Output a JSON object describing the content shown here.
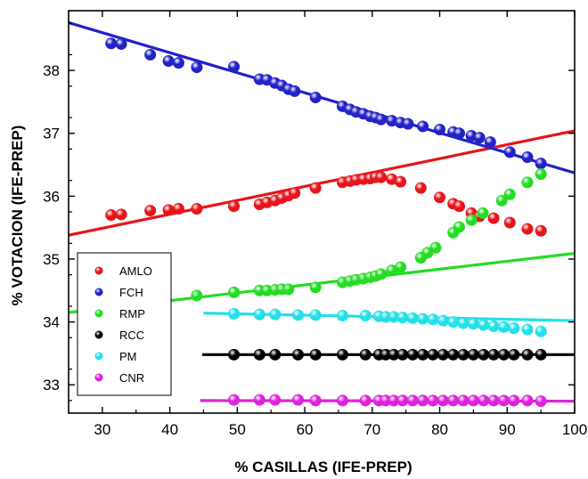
{
  "chart_data": {
    "type": "scatter",
    "title": "",
    "xlabel": "% CASILLAS (IFE-PREP)",
    "ylabel": "% VOTACION (IFE-PREP)",
    "xlim": [
      25,
      100
    ],
    "ylim": [
      32.55,
      38.95
    ],
    "xticks": [
      "30",
      "40",
      "50",
      "60",
      "70",
      "80",
      "90",
      "100"
    ],
    "yticks": [
      "33",
      "34",
      "35",
      "36",
      "37",
      "38"
    ],
    "grid": false,
    "legend_position": "bottom-left",
    "series": [
      {
        "name": "AMLO",
        "color": "#e8141b",
        "x": [
          31.3,
          32.8,
          37.1,
          39.8,
          41.3,
          44.0,
          49.5,
          53.3,
          54.4,
          55.6,
          56.6,
          57.6,
          58.5,
          61.6,
          65.6,
          66.7,
          67.6,
          68.7,
          69.7,
          70.5,
          71.3,
          72.9,
          74.2,
          77.2,
          80.0,
          82.0,
          82.9,
          84.7,
          85.9,
          88.0,
          90.4,
          93.0,
          95.0
        ],
        "y": [
          35.7,
          35.71,
          35.77,
          35.78,
          35.8,
          35.8,
          35.84,
          35.87,
          35.9,
          35.93,
          35.97,
          36.01,
          36.05,
          36.13,
          36.22,
          36.24,
          36.26,
          36.27,
          36.28,
          36.3,
          36.3,
          36.27,
          36.23,
          36.13,
          35.98,
          35.88,
          35.84,
          35.73,
          35.68,
          35.65,
          35.58,
          35.48,
          35.45
        ]
      },
      {
        "name": "FCH",
        "color": "#2222c8",
        "x": [
          31.3,
          32.8,
          37.1,
          39.8,
          41.3,
          44.0,
          49.5,
          53.3,
          54.4,
          55.6,
          56.6,
          57.6,
          58.5,
          61.6,
          65.6,
          66.7,
          67.6,
          68.7,
          69.7,
          70.5,
          71.3,
          72.9,
          74.2,
          75.3,
          77.5,
          80.0,
          82.0,
          82.9,
          84.7,
          85.9,
          87.5,
          90.4,
          93.0,
          95.0
        ],
        "y": [
          38.43,
          38.42,
          38.25,
          38.15,
          38.12,
          38.05,
          38.06,
          37.86,
          37.85,
          37.8,
          37.76,
          37.7,
          37.67,
          37.57,
          37.43,
          37.38,
          37.34,
          37.31,
          37.27,
          37.25,
          37.22,
          37.2,
          37.17,
          37.15,
          37.11,
          37.06,
          37.02,
          37.0,
          36.96,
          36.93,
          36.86,
          36.7,
          36.62,
          36.52
        ]
      },
      {
        "name": "RMP",
        "color": "#22dd22",
        "x": [
          44.0,
          49.5,
          53.3,
          54.4,
          55.6,
          56.6,
          57.6,
          61.6,
          65.6,
          66.7,
          67.6,
          68.7,
          69.7,
          70.5,
          71.3,
          72.9,
          74.2,
          77.2,
          78.2,
          79.4,
          82.0,
          82.9,
          84.7,
          86.4,
          89.2,
          90.4,
          93.0,
          95.0
        ],
        "y": [
          34.42,
          34.47,
          34.5,
          34.5,
          34.51,
          34.52,
          34.52,
          34.55,
          34.63,
          34.65,
          34.67,
          34.69,
          34.71,
          34.73,
          34.76,
          34.82,
          34.87,
          35.02,
          35.1,
          35.18,
          35.42,
          35.51,
          35.62,
          35.73,
          35.93,
          36.03,
          36.22,
          36.35
        ]
      },
      {
        "name": "RCC",
        "color": "#000000",
        "x": [
          49.5,
          53.3,
          55.6,
          59.0,
          61.6,
          65.6,
          69.0,
          71.0,
          72.0,
          73.2,
          74.5,
          76.0,
          77.5,
          79.0,
          80.5,
          82.0,
          83.5,
          85.0,
          86.5,
          88.0,
          89.5,
          91.0,
          93.0,
          95.0
        ],
        "y": [
          33.48,
          33.48,
          33.48,
          33.48,
          33.48,
          33.48,
          33.48,
          33.48,
          33.48,
          33.48,
          33.48,
          33.48,
          33.48,
          33.48,
          33.48,
          33.48,
          33.48,
          33.48,
          33.48,
          33.48,
          33.48,
          33.48,
          33.48,
          33.48
        ]
      },
      {
        "name": "PM",
        "color": "#22e0e8",
        "x": [
          49.5,
          53.3,
          55.6,
          59.0,
          61.6,
          65.6,
          69.0,
          71.0,
          72.0,
          73.2,
          74.5,
          76.0,
          77.5,
          79.0,
          80.5,
          82.0,
          83.5,
          85.0,
          86.5,
          88.0,
          89.5,
          91.0,
          93.0,
          95.0
        ],
        "y": [
          34.13,
          34.12,
          34.12,
          34.11,
          34.11,
          34.1,
          34.1,
          34.09,
          34.08,
          34.08,
          34.07,
          34.06,
          34.05,
          34.04,
          34.02,
          34.0,
          33.98,
          33.97,
          33.95,
          33.93,
          33.92,
          33.9,
          33.88,
          33.85
        ]
      },
      {
        "name": "CNR",
        "color": "#dd22dd",
        "x": [
          49.5,
          53.3,
          55.6,
          59.0,
          61.6,
          65.6,
          69.0,
          71.0,
          72.0,
          73.2,
          74.5,
          76.0,
          77.5,
          79.0,
          80.5,
          82.0,
          83.5,
          85.0,
          86.5,
          88.0,
          89.5,
          91.0,
          93.0,
          95.0
        ],
        "y": [
          32.76,
          32.76,
          32.76,
          32.76,
          32.75,
          32.75,
          32.75,
          32.75,
          32.75,
          32.75,
          32.75,
          32.75,
          32.75,
          32.75,
          32.75,
          32.75,
          32.75,
          32.75,
          32.75,
          32.75,
          32.75,
          32.75,
          32.75,
          32.74
        ]
      }
    ],
    "fit_lines": [
      {
        "series": "AMLO",
        "color": "#e8141b",
        "x": [
          25,
          100
        ],
        "y": [
          35.38,
          37.04
        ]
      },
      {
        "series": "FCH",
        "color": "#2222c8",
        "x": [
          25,
          100
        ],
        "y": [
          38.76,
          36.37
        ]
      },
      {
        "series": "RMP",
        "color": "#22dd22",
        "x": [
          25,
          100
        ],
        "y": [
          34.15,
          35.09
        ]
      },
      {
        "series": "RCC",
        "color": "#000000",
        "x": [
          44.8,
          100
        ],
        "y": [
          33.48,
          33.48
        ]
      },
      {
        "series": "PM",
        "color": "#22e0e8",
        "x": [
          45.0,
          100
        ],
        "y": [
          34.14,
          34.02
        ]
      },
      {
        "series": "CNR",
        "color": "#dd22dd",
        "x": [
          44.5,
          100
        ],
        "y": [
          32.75,
          32.74
        ]
      }
    ]
  }
}
